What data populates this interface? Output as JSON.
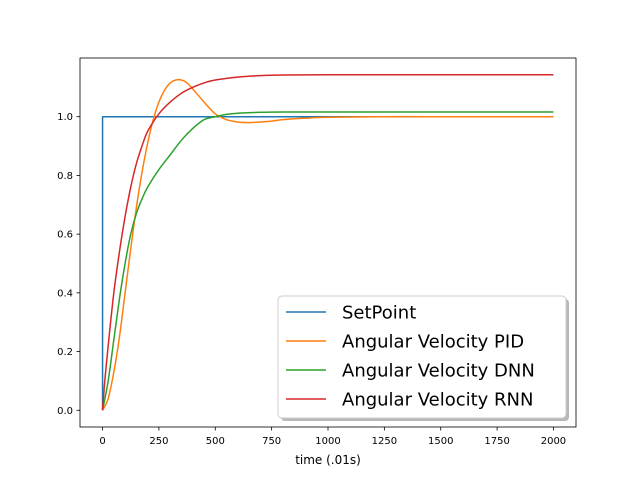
{
  "chart_data": {
    "type": "line",
    "title": "",
    "xlabel": "time (.01s)",
    "ylabel": "",
    "xlim": [
      -100,
      2100
    ],
    "ylim": [
      -0.057,
      1.2
    ],
    "xticks": [
      0,
      250,
      500,
      750,
      1000,
      1250,
      1500,
      1750,
      2000
    ],
    "xtick_labels": [
      "0",
      "250",
      "500",
      "750",
      "1000",
      "1250",
      "1500",
      "1750",
      "2000"
    ],
    "yticks": [
      0.0,
      0.2,
      0.4,
      0.6,
      0.8,
      1.0
    ],
    "ytick_labels": [
      "0.0",
      "0.2",
      "0.4",
      "0.6",
      "0.8",
      "1.0"
    ],
    "grid": false,
    "legend_position": "lower-right",
    "series": [
      {
        "name": "SetPoint",
        "color": "#1f77b4",
        "x": [
          0,
          0,
          2000
        ],
        "y": [
          0,
          1.0,
          1.0
        ]
      },
      {
        "name": "Angular Velocity PID",
        "color": "#ff7f0e",
        "x": [
          0,
          25,
          50,
          75,
          100,
          125,
          150,
          175,
          200,
          225,
          250,
          275,
          300,
          325,
          350,
          375,
          400,
          450,
          500,
          550,
          600,
          650,
          700,
          750,
          800,
          900,
          1000,
          1250,
          1500,
          1750,
          2000
        ],
        "y": [
          0,
          0.04,
          0.13,
          0.25,
          0.4,
          0.55,
          0.69,
          0.81,
          0.91,
          0.99,
          1.05,
          1.09,
          1.115,
          1.125,
          1.125,
          1.115,
          1.095,
          1.05,
          1.01,
          0.99,
          0.982,
          0.98,
          0.982,
          0.985,
          0.99,
          0.995,
          0.998,
          1.0,
          1.0,
          1.0,
          1.0
        ]
      },
      {
        "name": "Angular Velocity DNN",
        "color": "#2ca02c",
        "x": [
          0,
          25,
          50,
          75,
          100,
          125,
          150,
          175,
          200,
          250,
          300,
          350,
          400,
          450,
          500,
          550,
          600,
          700,
          800,
          1000,
          1250,
          1500,
          1750,
          2000
        ],
        "y": [
          0,
          0.1,
          0.24,
          0.38,
          0.5,
          0.6,
          0.67,
          0.72,
          0.76,
          0.82,
          0.87,
          0.92,
          0.96,
          0.99,
          1.0,
          1.008,
          1.012,
          1.015,
          1.016,
          1.016,
          1.016,
          1.016,
          1.016,
          1.016
        ]
      },
      {
        "name": "Angular Velocity RNN",
        "color": "#d62728",
        "x": [
          0,
          10,
          25,
          50,
          75,
          100,
          125,
          150,
          175,
          200,
          250,
          300,
          350,
          400,
          450,
          500,
          600,
          700,
          800,
          1000,
          1250,
          1500,
          1750,
          2000
        ],
        "y": [
          0,
          0.1,
          0.22,
          0.4,
          0.54,
          0.66,
          0.76,
          0.84,
          0.9,
          0.95,
          1.01,
          1.05,
          1.08,
          1.1,
          1.115,
          1.125,
          1.135,
          1.14,
          1.142,
          1.143,
          1.143,
          1.143,
          1.143,
          1.143
        ]
      }
    ]
  }
}
